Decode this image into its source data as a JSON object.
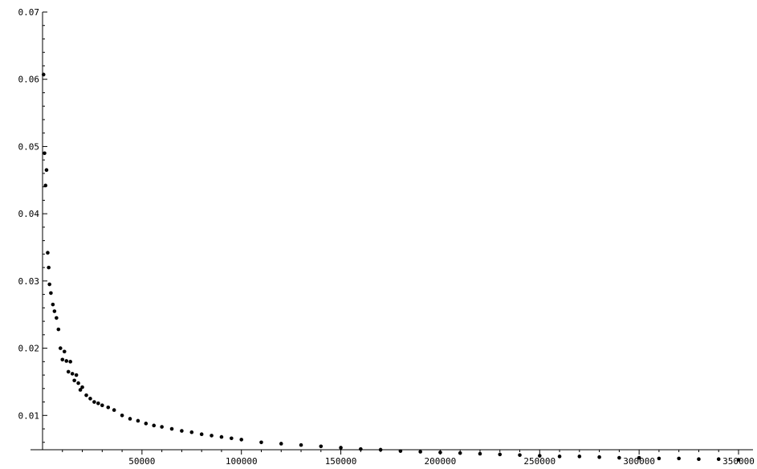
{
  "chart_data": {
    "type": "scatter",
    "title": "",
    "xlabel": "",
    "ylabel": "",
    "xlim": [
      0,
      350000
    ],
    "ylim": [
      0,
      0.07
    ],
    "grid": false,
    "legend": "none",
    "marker_color": "#000000",
    "x_ticks": [
      50000,
      100000,
      150000,
      200000,
      250000,
      300000,
      350000
    ],
    "x_tick_labels": [
      "50000",
      "100000",
      "150000",
      "200000",
      "250000",
      "300000",
      "350000"
    ],
    "y_ticks": [
      0.01,
      0.02,
      0.03,
      0.04,
      0.05,
      0.06,
      0.07
    ],
    "y_tick_labels": [
      "0.01",
      "0.02",
      "0.03",
      "0.04",
      "0.05",
      "0.06",
      "0.07"
    ],
    "series": [
      {
        "x": [
          500,
          1000,
          1500,
          2000,
          2600,
          3100,
          3500,
          4200,
          5200,
          6000,
          7000,
          8000,
          9000,
          10000,
          11000,
          12000,
          13000,
          14000,
          15000,
          16000,
          17000,
          18000,
          19000,
          20000,
          22000,
          24000,
          26000,
          28000,
          30000,
          33000,
          36000,
          40000,
          44000,
          48000,
          52000,
          56000,
          60000,
          65000,
          70000,
          75000,
          80000,
          85000,
          90000,
          95000,
          100000,
          110000,
          120000,
          130000,
          140000,
          150000,
          160000,
          170000,
          180000,
          190000,
          200000,
          210000,
          220000,
          230000,
          240000,
          250000,
          260000,
          270000,
          280000,
          290000,
          300000,
          310000,
          320000,
          330000,
          340000,
          350000
        ],
        "y": [
          0.0607,
          0.049,
          0.0442,
          0.0465,
          0.0342,
          0.032,
          0.0295,
          0.0282,
          0.0265,
          0.0255,
          0.0245,
          0.0228,
          0.02,
          0.0183,
          0.0195,
          0.0181,
          0.0165,
          0.018,
          0.0162,
          0.0152,
          0.016,
          0.0148,
          0.0138,
          0.0142,
          0.013,
          0.0125,
          0.012,
          0.0118,
          0.0115,
          0.0112,
          0.0108,
          0.01,
          0.0095,
          0.0092,
          0.0088,
          0.0085,
          0.0083,
          0.008,
          0.0077,
          0.0075,
          0.0072,
          0.007,
          0.0068,
          0.0066,
          0.0064,
          0.006,
          0.0058,
          0.0056,
          0.0054,
          0.0052,
          0.005,
          0.0049,
          0.0047,
          0.0046,
          0.0045,
          0.0044,
          0.0043,
          0.0042,
          0.0041,
          0.004,
          0.0039,
          0.0039,
          0.0038,
          0.0037,
          0.0037,
          0.0036,
          0.0036,
          0.0035,
          0.0035,
          0.0034
        ]
      }
    ]
  }
}
